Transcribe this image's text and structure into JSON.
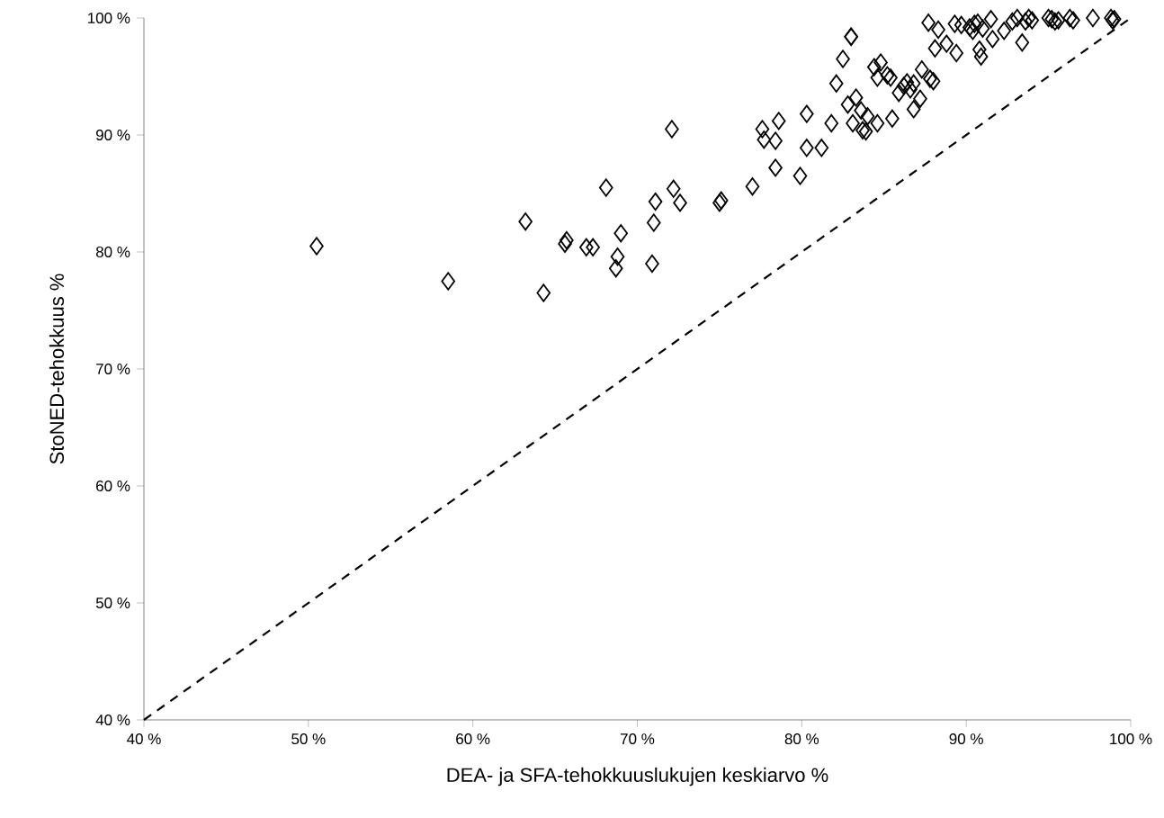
{
  "chart_data": {
    "type": "scatter",
    "xlabel": "DEA- ja SFA-tehokkuuslukujen keskiarvo %",
    "ylabel": "StoNED-tehokkuus %",
    "xlim": [
      40,
      100
    ],
    "ylim": [
      40,
      100
    ],
    "xticks": [
      {
        "value": 40,
        "label": "40 %"
      },
      {
        "value": 50,
        "label": "50 %"
      },
      {
        "value": 60,
        "label": "60 %"
      },
      {
        "value": 70,
        "label": "70 %"
      },
      {
        "value": 80,
        "label": "80 %"
      },
      {
        "value": 90,
        "label": "90 %"
      },
      {
        "value": 100,
        "label": "100 %"
      }
    ],
    "yticks": [
      {
        "value": 40,
        "label": "40 %"
      },
      {
        "value": 50,
        "label": "50 %"
      },
      {
        "value": 60,
        "label": "60 %"
      },
      {
        "value": 70,
        "label": "70 %"
      },
      {
        "value": 80,
        "label": "80 %"
      },
      {
        "value": 90,
        "label": "90 %"
      },
      {
        "value": 100,
        "label": "100 %"
      }
    ],
    "series": [
      {
        "color": "#000000",
        "marker": "diamond",
        "x": [
          50.5,
          58.5,
          63.2,
          64.3,
          65.6,
          65.7,
          66.9,
          67.3,
          68.1,
          68.7,
          68.8,
          69.0,
          70.9,
          71.0,
          71.1,
          72.1,
          72.2,
          72.6,
          75.0,
          75.1,
          77.0,
          77.6,
          77.7,
          78.4,
          78.4,
          78.6,
          79.9,
          80.3,
          80.3,
          81.2,
          81.8,
          82.1,
          82.5,
          82.8,
          83.0,
          83.0,
          83.1,
          83.3,
          83.6,
          83.7,
          83.9,
          84.0,
          84.4,
          84.6,
          84.6,
          84.8,
          85.2,
          85.4,
          85.5,
          85.9,
          86.2,
          86.4,
          86.6,
          86.8,
          86.8,
          87.2,
          87.3,
          87.7,
          87.8,
          88.0,
          88.1,
          88.3,
          88.8,
          89.3,
          89.4,
          89.7,
          90.2,
          90.4,
          90.5,
          90.7,
          90.8,
          90.9,
          91.0,
          91.5,
          91.6,
          92.3,
          92.8,
          93.1,
          93.4,
          93.6,
          93.8,
          94.0,
          95.0,
          95.2,
          95.4,
          95.6,
          96.3,
          96.5,
          97.7,
          98.8,
          98.9,
          99.0
        ],
        "values": [
          80.5,
          77.5,
          82.6,
          76.5,
          80.7,
          81.0,
          80.4,
          80.4,
          85.5,
          78.6,
          79.6,
          81.6,
          79.0,
          82.5,
          84.3,
          90.5,
          85.4,
          84.2,
          84.2,
          84.4,
          85.6,
          90.5,
          89.6,
          87.2,
          89.5,
          91.2,
          86.5,
          91.8,
          88.9,
          88.9,
          91.0,
          94.4,
          96.5,
          92.6,
          98.4,
          98.4,
          91.0,
          93.2,
          92.1,
          90.4,
          90.3,
          91.6,
          95.8,
          91.0,
          94.9,
          96.2,
          95.1,
          94.9,
          91.4,
          93.6,
          94.2,
          94.5,
          93.9,
          92.2,
          94.4,
          93.1,
          95.6,
          99.6,
          94.8,
          94.6,
          97.4,
          99.0,
          97.8,
          99.5,
          97.0,
          99.4,
          99.2,
          98.9,
          99.5,
          99.6,
          97.3,
          96.7,
          99.1,
          99.9,
          98.2,
          98.9,
          99.7,
          100.0,
          97.9,
          99.7,
          100.0,
          99.8,
          100.0,
          99.9,
          99.7,
          99.8,
          100.0,
          99.8,
          100.0,
          100.0,
          99.8,
          99.9
        ]
      },
      {
        "type": "line",
        "color": "#000000",
        "marker": "none",
        "line_style": "dashed",
        "x": [
          40,
          100
        ],
        "values": [
          40,
          100
        ]
      }
    ]
  }
}
